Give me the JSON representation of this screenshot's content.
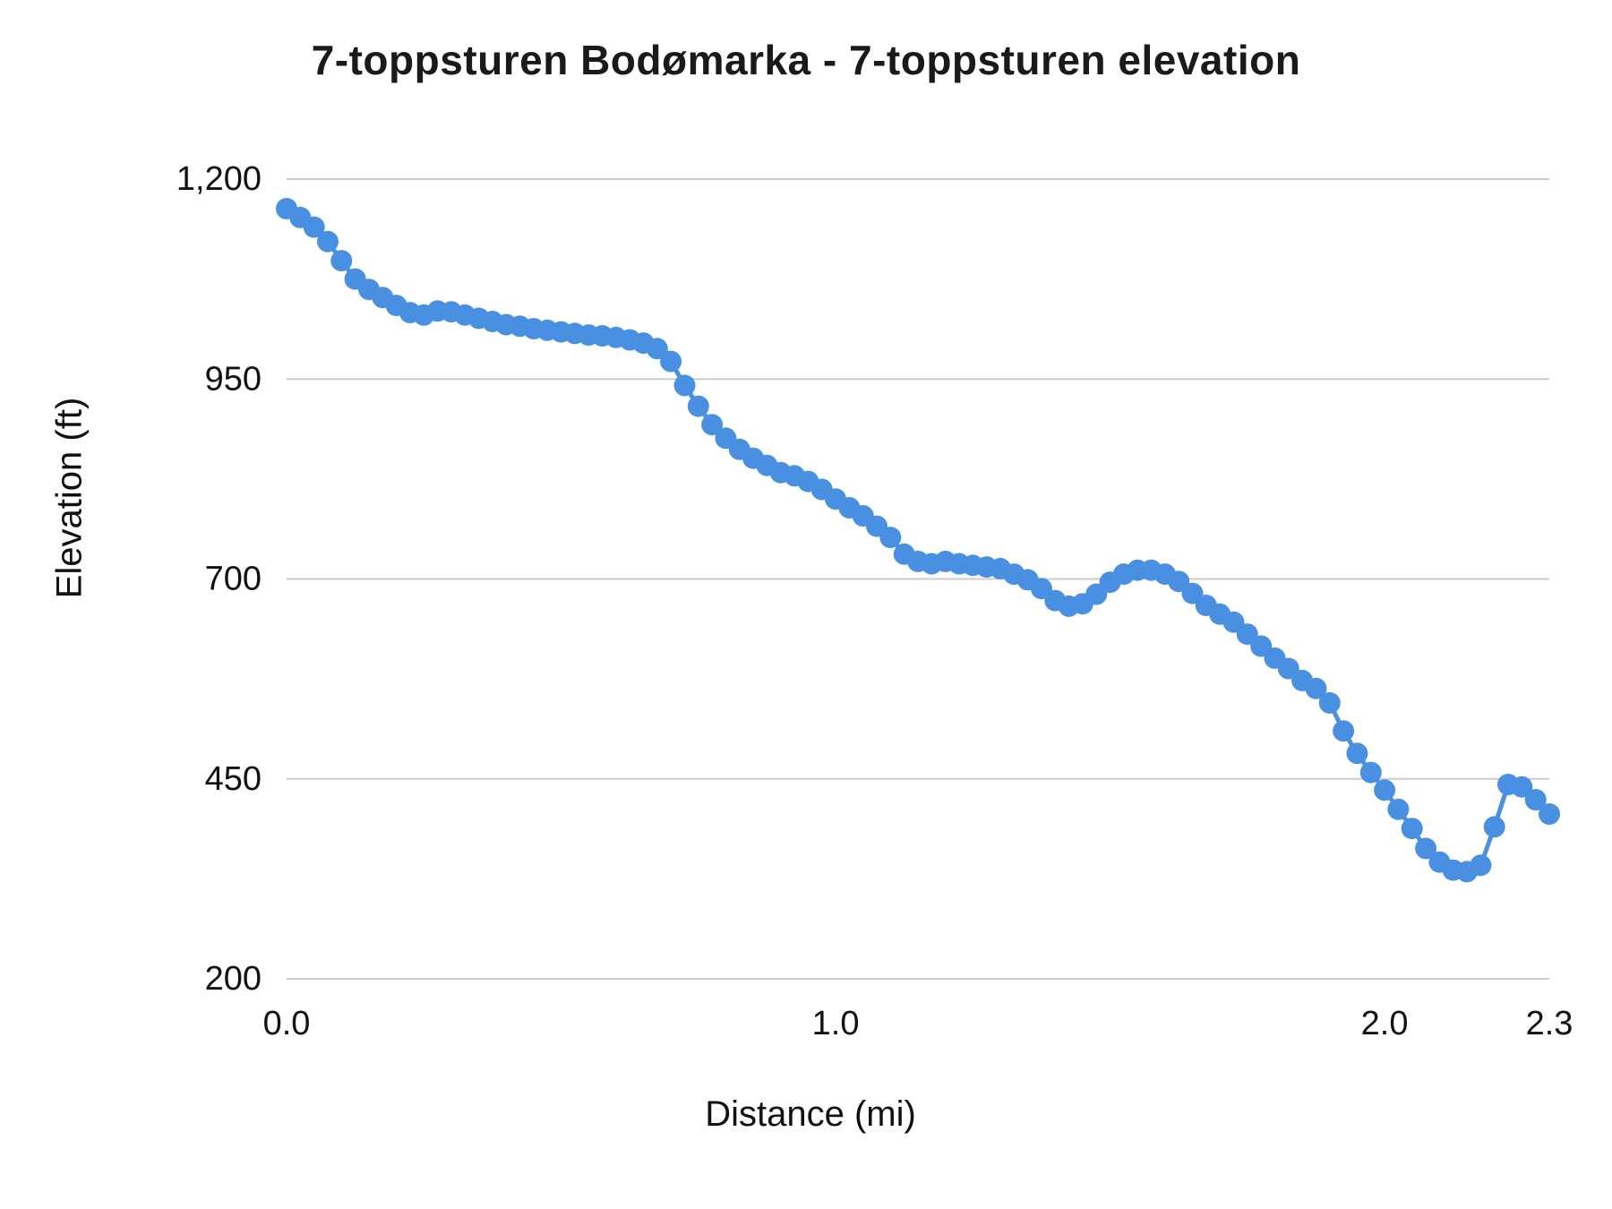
{
  "chart_data": {
    "type": "line",
    "title": "7-toppsturen Bodømarka - 7-toppsturen elevation",
    "xlabel": "Distance (mi)",
    "ylabel": "Elevation (ft)",
    "xlim": [
      0,
      2.3
    ],
    "ylim": [
      200,
      1200
    ],
    "grid": "horizontal",
    "legend": "none",
    "line_color": "#4a90e2",
    "gridline_color": "#cccccc",
    "tick_label_color": "#111111",
    "x_ticks": [
      {
        "label": "0.0",
        "value": 0.0
      },
      {
        "label": "1.0",
        "value": 1.0
      },
      {
        "label": "2.0",
        "value": 2.0
      },
      {
        "label": "2.3",
        "value": 2.3
      }
    ],
    "y_ticks": [
      {
        "label": "1,200",
        "value": 1200
      },
      {
        "label": "950",
        "value": 950
      },
      {
        "label": "700",
        "value": 700
      },
      {
        "label": "450",
        "value": 450
      },
      {
        "label": "200",
        "value": 200
      }
    ],
    "series": [
      {
        "name": "elevation",
        "points": [
          [
            0.0,
            1163
          ],
          [
            0.025,
            1152
          ],
          [
            0.05,
            1140
          ],
          [
            0.075,
            1122
          ],
          [
            0.1,
            1098
          ],
          [
            0.125,
            1075
          ],
          [
            0.15,
            1062
          ],
          [
            0.175,
            1052
          ],
          [
            0.2,
            1042
          ],
          [
            0.225,
            1033
          ],
          [
            0.25,
            1030
          ],
          [
            0.275,
            1035
          ],
          [
            0.3,
            1034
          ],
          [
            0.325,
            1030
          ],
          [
            0.35,
            1026
          ],
          [
            0.375,
            1022
          ],
          [
            0.4,
            1018
          ],
          [
            0.425,
            1016
          ],
          [
            0.45,
            1013
          ],
          [
            0.475,
            1011
          ],
          [
            0.5,
            1009
          ],
          [
            0.525,
            1007
          ],
          [
            0.55,
            1005
          ],
          [
            0.575,
            1004
          ],
          [
            0.6,
            1002
          ],
          [
            0.625,
            999
          ],
          [
            0.65,
            995
          ],
          [
            0.675,
            988
          ],
          [
            0.7,
            972
          ],
          [
            0.725,
            942
          ],
          [
            0.75,
            916
          ],
          [
            0.775,
            893
          ],
          [
            0.8,
            876
          ],
          [
            0.825,
            862
          ],
          [
            0.85,
            851
          ],
          [
            0.875,
            842
          ],
          [
            0.9,
            833
          ],
          [
            0.925,
            829
          ],
          [
            0.95,
            822
          ],
          [
            0.975,
            812
          ],
          [
            1.0,
            800
          ],
          [
            1.025,
            789
          ],
          [
            1.05,
            779
          ],
          [
            1.075,
            766
          ],
          [
            1.1,
            752
          ],
          [
            1.125,
            731
          ],
          [
            1.15,
            722
          ],
          [
            1.175,
            719
          ],
          [
            1.2,
            722
          ],
          [
            1.225,
            719
          ],
          [
            1.25,
            717
          ],
          [
            1.275,
            715
          ],
          [
            1.3,
            713
          ],
          [
            1.325,
            706
          ],
          [
            1.35,
            699
          ],
          [
            1.375,
            688
          ],
          [
            1.4,
            673
          ],
          [
            1.425,
            666
          ],
          [
            1.45,
            669
          ],
          [
            1.475,
            681
          ],
          [
            1.5,
            696
          ],
          [
            1.525,
            706
          ],
          [
            1.55,
            711
          ],
          [
            1.575,
            711
          ],
          [
            1.6,
            706
          ],
          [
            1.625,
            697
          ],
          [
            1.65,
            682
          ],
          [
            1.675,
            667
          ],
          [
            1.7,
            656
          ],
          [
            1.725,
            646
          ],
          [
            1.75,
            631
          ],
          [
            1.775,
            616
          ],
          [
            1.8,
            601
          ],
          [
            1.825,
            588
          ],
          [
            1.85,
            573
          ],
          [
            1.875,
            563
          ],
          [
            1.9,
            545
          ],
          [
            1.925,
            510
          ],
          [
            1.95,
            482
          ],
          [
            1.975,
            458
          ],
          [
            2.0,
            436
          ],
          [
            2.025,
            412
          ],
          [
            2.05,
            388
          ],
          [
            2.075,
            363
          ],
          [
            2.1,
            346
          ],
          [
            2.125,
            336
          ],
          [
            2.15,
            334
          ],
          [
            2.175,
            342
          ],
          [
            2.2,
            390
          ],
          [
            2.225,
            443
          ],
          [
            2.25,
            440
          ],
          [
            2.275,
            424
          ],
          [
            2.3,
            406
          ]
        ]
      }
    ]
  }
}
